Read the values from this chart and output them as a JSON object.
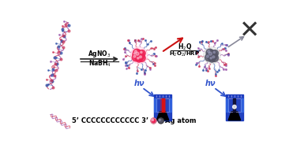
{
  "bg_color": "#f5f5f0",
  "reagent1_line1": "AgNO$_3$",
  "reagent1_line2": "NaBH$_4$",
  "reagent2_line1": "H$_2$Q",
  "reagent2_line2": "H$_2$O$_2$/HRP",
  "hv1": "hν",
  "hv2": "hν",
  "legend_dna": "5’ CCCCCCCCCCCC 3’",
  "legend_ag": "Ag atom",
  "arrow1_color": "#3355cc",
  "arrow2_color": "#cc1111",
  "arrow3_color": "#888899",
  "hv_color": "#3355cc",
  "cross_color": "#444444",
  "ag_active_color": "#ee2255",
  "ag_inactive_color": "#555566",
  "dna_color1": "#9955aa",
  "dna_color2": "#cc3355",
  "dna_blue": "#3355aa",
  "cluster_pink": "#ee2255",
  "cluster_dark": "#555566",
  "cuv_bg": "#1133bb",
  "cuv_beam_red": "#dd1111",
  "cuv_beam_white": "#ddddff"
}
